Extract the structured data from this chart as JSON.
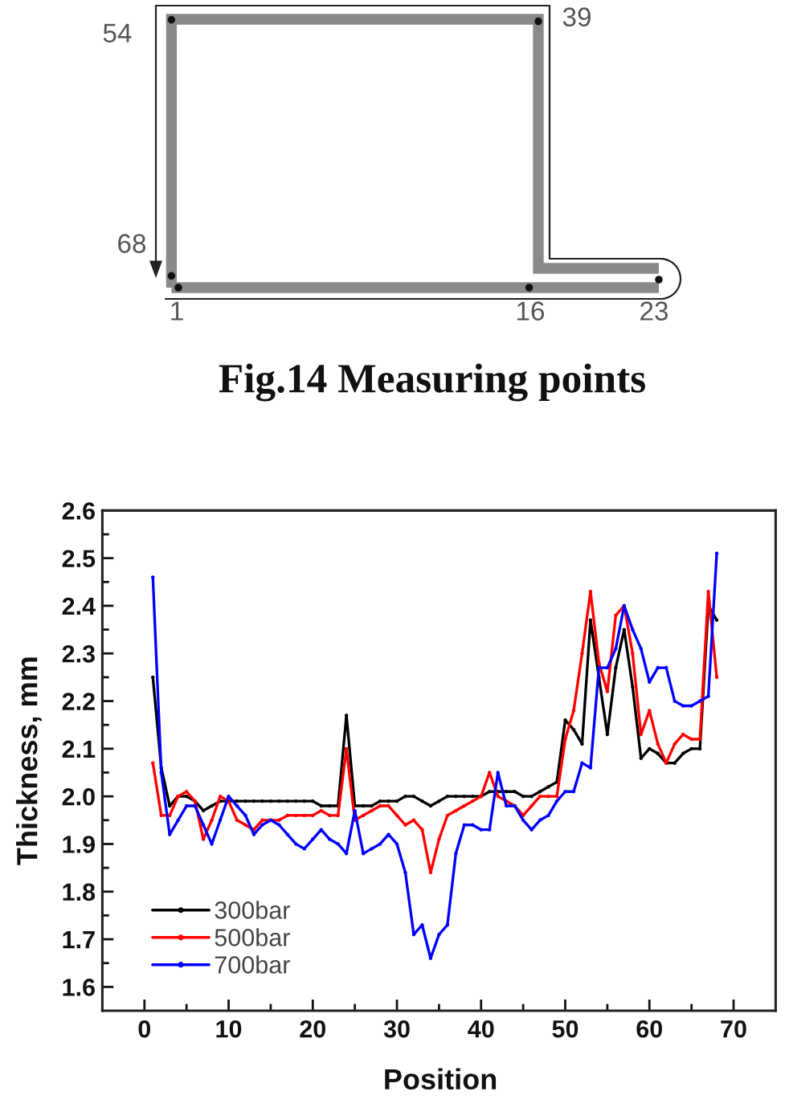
{
  "chart_data": [
    {
      "type": "other",
      "title": "Fig.14 Measuring points",
      "annotations": [
        "54",
        "39",
        "68",
        "1",
        "16",
        "23"
      ]
    },
    {
      "type": "line",
      "xlabel": "Position",
      "ylabel": "Thickness, mm",
      "x": [
        1,
        2,
        3,
        4,
        5,
        6,
        7,
        8,
        9,
        10,
        11,
        12,
        13,
        14,
        15,
        16,
        17,
        18,
        19,
        20,
        21,
        22,
        23,
        24,
        25,
        26,
        27,
        28,
        29,
        30,
        31,
        32,
        33,
        34,
        35,
        36,
        37,
        38,
        39,
        40,
        41,
        42,
        43,
        44,
        45,
        46,
        47,
        48,
        49,
        50,
        51,
        52,
        53,
        54,
        55,
        56,
        57,
        58,
        59,
        60,
        61,
        62,
        63,
        64,
        65,
        66,
        67,
        68
      ],
      "series": [
        {
          "name": "300bar",
          "color": "#000000",
          "values": [
            2.25,
            2.06,
            1.98,
            2.0,
            2.0,
            1.99,
            1.97,
            1.98,
            1.99,
            1.99,
            1.99,
            1.99,
            1.99,
            1.99,
            1.99,
            1.99,
            1.99,
            1.99,
            1.99,
            1.99,
            1.98,
            1.98,
            1.98,
            2.17,
            1.98,
            1.98,
            1.98,
            1.99,
            1.99,
            1.99,
            2.0,
            2.0,
            1.99,
            1.98,
            1.99,
            2.0,
            2.0,
            2.0,
            2.0,
            2.0,
            2.01,
            2.01,
            2.01,
            2.01,
            2.0,
            2.0,
            2.01,
            2.02,
            2.03,
            2.16,
            2.14,
            2.11,
            2.37,
            2.25,
            2.13,
            2.27,
            2.35,
            2.23,
            2.08,
            2.1,
            2.09,
            2.07,
            2.07,
            2.09,
            2.1,
            2.1,
            2.4,
            2.37
          ]
        },
        {
          "name": "500bar",
          "color": "#ff0000",
          "values": [
            2.07,
            1.96,
            1.96,
            2.0,
            2.01,
            1.99,
            1.91,
            1.95,
            2.0,
            1.99,
            1.95,
            1.94,
            1.93,
            1.95,
            1.95,
            1.95,
            1.96,
            1.96,
            1.96,
            1.96,
            1.97,
            1.96,
            1.96,
            2.1,
            1.95,
            1.96,
            1.97,
            1.98,
            1.98,
            1.96,
            1.94,
            1.95,
            1.93,
            1.84,
            1.91,
            1.96,
            1.97,
            1.98,
            1.99,
            2.0,
            2.05,
            2.0,
            1.99,
            1.98,
            1.96,
            1.98,
            2.0,
            2.0,
            2.0,
            2.12,
            2.18,
            2.3,
            2.43,
            2.28,
            2.22,
            2.38,
            2.4,
            2.3,
            2.13,
            2.18,
            2.11,
            2.07,
            2.11,
            2.13,
            2.12,
            2.12,
            2.43,
            2.25
          ]
        },
        {
          "name": "700bar",
          "color": "#0000ff",
          "values": [
            2.46,
            2.05,
            1.92,
            1.95,
            1.98,
            1.98,
            1.94,
            1.9,
            1.95,
            2.0,
            1.98,
            1.96,
            1.92,
            1.94,
            1.95,
            1.94,
            1.92,
            1.9,
            1.89,
            1.91,
            1.93,
            1.91,
            1.9,
            1.88,
            1.97,
            1.88,
            1.89,
            1.9,
            1.92,
            1.9,
            1.84,
            1.71,
            1.73,
            1.66,
            1.71,
            1.73,
            1.88,
            1.94,
            1.94,
            1.93,
            1.93,
            2.05,
            1.98,
            1.98,
            1.95,
            1.93,
            1.95,
            1.96,
            1.99,
            2.01,
            2.01,
            2.07,
            2.06,
            2.27,
            2.27,
            2.31,
            2.4,
            2.35,
            2.31,
            2.24,
            2.27,
            2.27,
            2.2,
            2.19,
            2.19,
            2.2,
            2.21,
            2.51
          ]
        }
      ],
      "xlim": [
        -5,
        75
      ],
      "xticks": [
        0,
        10,
        20,
        30,
        40,
        50,
        60,
        70
      ],
      "ylim": [
        1.55,
        2.6
      ],
      "yticks": [
        1.6,
        1.7,
        1.8,
        1.9,
        {
          "value": 2.0,
          "label": "2.0"
        },
        2.1,
        2.2,
        2.3,
        2.4,
        2.5,
        2.6
      ],
      "legend": "bottom left",
      "marker": "circle",
      "line_style": "solid",
      "grid": false
    }
  ]
}
